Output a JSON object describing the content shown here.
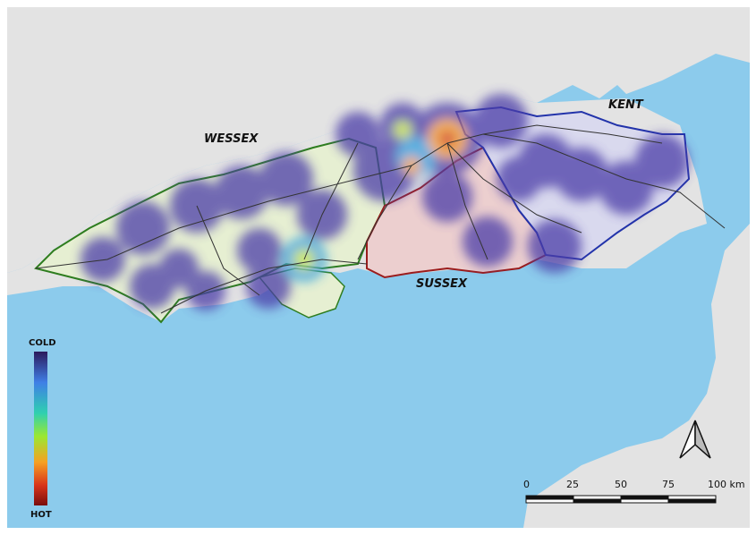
{
  "regions": [
    {
      "name": "WESSEX",
      "fill": "#e6efd2",
      "border": "#2e7d1f"
    },
    {
      "name": "SUSSEX",
      "fill": "#eccfcf",
      "border": "#9b1c1c"
    },
    {
      "name": "KENT",
      "fill": "#d9d9ee",
      "border": "#2233aa"
    }
  ],
  "legend": {
    "top_label": "COLD",
    "bottom_label": "HOT",
    "colormap": [
      "#2b1a5c",
      "#3f7fe6",
      "#2fd0b0",
      "#9ae832",
      "#f6a024",
      "#d8341a",
      "#7a0d0d"
    ]
  },
  "scale_bar": {
    "ticks": [
      "0",
      "25",
      "50",
      "75",
      "100 km"
    ]
  },
  "north_arrow": {
    "icon": "north-arrow-icon"
  },
  "colors": {
    "sea": "#8ccbec",
    "land": "#e3e3e3"
  }
}
